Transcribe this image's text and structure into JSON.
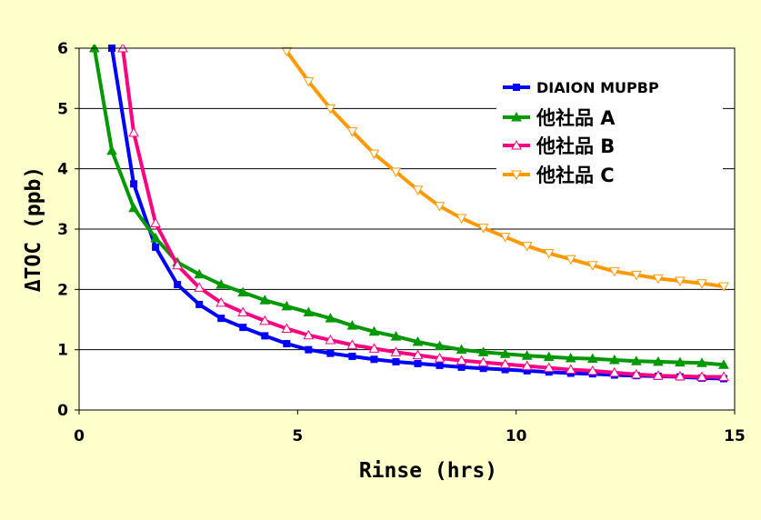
{
  "chart_data": {
    "type": "line",
    "title": "",
    "xlabel": "Rinse (hrs)",
    "ylabel": "ΔTOC (ppb)",
    "xlim": [
      0,
      15
    ],
    "ylim": [
      0,
      6
    ],
    "x_ticks": [
      "0",
      "5",
      "10",
      "15"
    ],
    "y_ticks": [
      "0",
      "1",
      "2",
      "3",
      "4",
      "5",
      "6"
    ],
    "grid": "horizontal",
    "legend_position": "top-right",
    "background": "#FFFFCC",
    "series": [
      {
        "name": "DIAION MUPBP",
        "color": "#0000FF",
        "marker": "square-filled",
        "points": [
          [
            0.75,
            6.0
          ],
          [
            1.25,
            3.75
          ],
          [
            1.75,
            2.7
          ],
          [
            2.25,
            2.08
          ],
          [
            2.75,
            1.75
          ],
          [
            3.25,
            1.52
          ],
          [
            3.75,
            1.37
          ],
          [
            4.25,
            1.23
          ],
          [
            4.75,
            1.1
          ],
          [
            5.25,
            1.0
          ],
          [
            5.75,
            0.94
          ],
          [
            6.25,
            0.89
          ],
          [
            6.75,
            0.84
          ],
          [
            7.25,
            0.8
          ],
          [
            7.75,
            0.77
          ],
          [
            8.25,
            0.74
          ],
          [
            8.75,
            0.71
          ],
          [
            9.25,
            0.69
          ],
          [
            9.75,
            0.67
          ],
          [
            10.25,
            0.65
          ],
          [
            10.75,
            0.63
          ],
          [
            11.25,
            0.61
          ],
          [
            11.75,
            0.6
          ],
          [
            12.25,
            0.58
          ],
          [
            12.75,
            0.57
          ],
          [
            13.25,
            0.56
          ],
          [
            13.75,
            0.55
          ],
          [
            14.25,
            0.53
          ],
          [
            14.75,
            0.52
          ]
        ]
      },
      {
        "name": "他社品 A",
        "color": "#009900",
        "marker": "triangle-up-filled",
        "points": [
          [
            0.35,
            6.0
          ],
          [
            0.75,
            4.3
          ],
          [
            1.25,
            3.35
          ],
          [
            1.75,
            2.85
          ],
          [
            2.25,
            2.45
          ],
          [
            2.75,
            2.25
          ],
          [
            3.25,
            2.08
          ],
          [
            3.75,
            1.95
          ],
          [
            4.25,
            1.82
          ],
          [
            4.75,
            1.72
          ],
          [
            5.25,
            1.62
          ],
          [
            5.75,
            1.52
          ],
          [
            6.25,
            1.4
          ],
          [
            6.75,
            1.3
          ],
          [
            7.25,
            1.22
          ],
          [
            7.75,
            1.13
          ],
          [
            8.25,
            1.06
          ],
          [
            8.75,
            1.0
          ],
          [
            9.25,
            0.96
          ],
          [
            9.75,
            0.93
          ],
          [
            10.25,
            0.9
          ],
          [
            10.75,
            0.88
          ],
          [
            11.25,
            0.86
          ],
          [
            11.75,
            0.85
          ],
          [
            12.25,
            0.83
          ],
          [
            12.75,
            0.81
          ],
          [
            13.25,
            0.8
          ],
          [
            13.75,
            0.79
          ],
          [
            14.25,
            0.78
          ],
          [
            14.75,
            0.75
          ]
        ]
      },
      {
        "name": "他社品 B",
        "color": "#FF0080",
        "marker": "triangle-up-open",
        "points": [
          [
            1.0,
            6.0
          ],
          [
            1.25,
            4.6
          ],
          [
            1.75,
            3.1
          ],
          [
            2.25,
            2.4
          ],
          [
            2.75,
            2.03
          ],
          [
            3.25,
            1.78
          ],
          [
            3.75,
            1.62
          ],
          [
            4.25,
            1.48
          ],
          [
            4.75,
            1.35
          ],
          [
            5.25,
            1.24
          ],
          [
            5.75,
            1.16
          ],
          [
            6.25,
            1.08
          ],
          [
            6.75,
            1.02
          ],
          [
            7.25,
            0.96
          ],
          [
            7.75,
            0.91
          ],
          [
            8.25,
            0.86
          ],
          [
            8.75,
            0.82
          ],
          [
            9.25,
            0.79
          ],
          [
            9.75,
            0.76
          ],
          [
            10.25,
            0.73
          ],
          [
            10.75,
            0.7
          ],
          [
            11.25,
            0.67
          ],
          [
            11.75,
            0.65
          ],
          [
            12.25,
            0.62
          ],
          [
            12.75,
            0.59
          ],
          [
            13.25,
            0.57
          ],
          [
            13.75,
            0.56
          ],
          [
            14.25,
            0.55
          ],
          [
            14.75,
            0.55
          ]
        ]
      },
      {
        "name": "他社品 C",
        "color": "#FF9900",
        "marker": "triangle-down-open",
        "points": [
          [
            4.75,
            5.95
          ],
          [
            5.25,
            5.45
          ],
          [
            5.75,
            5.0
          ],
          [
            6.25,
            4.62
          ],
          [
            6.75,
            4.25
          ],
          [
            7.25,
            3.95
          ],
          [
            7.75,
            3.65
          ],
          [
            8.25,
            3.38
          ],
          [
            8.75,
            3.18
          ],
          [
            9.25,
            3.02
          ],
          [
            9.75,
            2.87
          ],
          [
            10.25,
            2.72
          ],
          [
            10.75,
            2.6
          ],
          [
            11.25,
            2.5
          ],
          [
            11.75,
            2.4
          ],
          [
            12.25,
            2.3
          ],
          [
            12.75,
            2.24
          ],
          [
            13.25,
            2.18
          ],
          [
            13.75,
            2.14
          ],
          [
            14.25,
            2.1
          ],
          [
            14.75,
            2.05
          ]
        ]
      }
    ]
  }
}
